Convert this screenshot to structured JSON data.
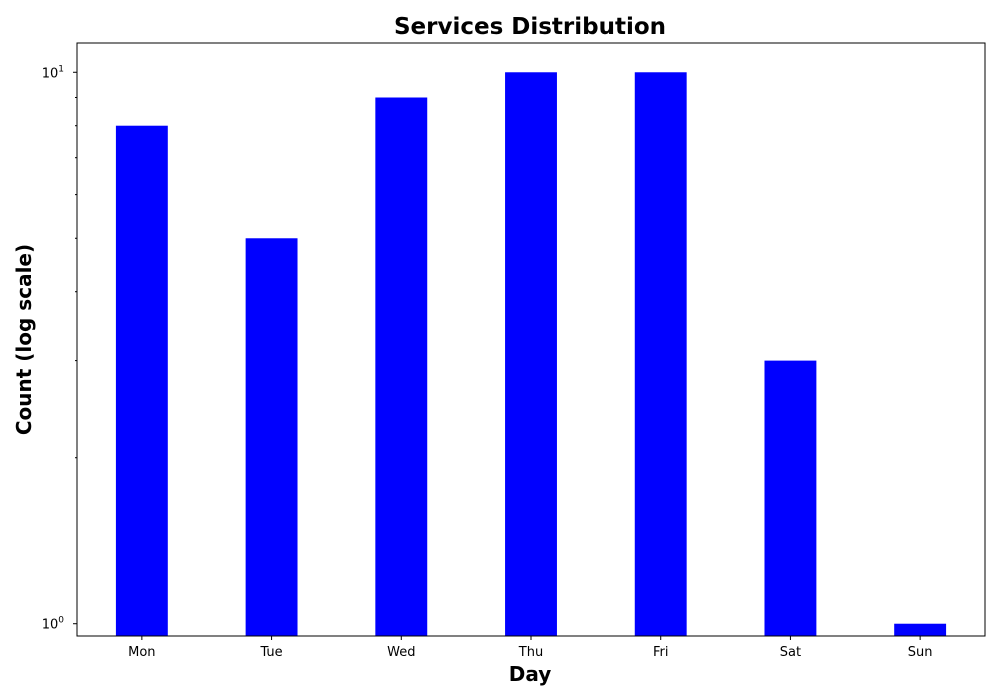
{
  "chart_data": {
    "type": "bar",
    "title": "Services Distribution",
    "xlabel": "Day",
    "ylabel": "Count (log scale)",
    "y_scale": "log",
    "ylim": [
      0.95,
      11.3
    ],
    "categories": [
      "Mon",
      "Tue",
      "Wed",
      "Thu",
      "Fri",
      "Sat",
      "Sun"
    ],
    "values": [
      8,
      5,
      9,
      10,
      10,
      3,
      1
    ],
    "y_ticks": [
      {
        "value": 1,
        "base": "10",
        "exp": "0"
      },
      {
        "value": 10,
        "base": "10",
        "exp": "1"
      }
    ],
    "bar_color": "#0000ff",
    "grid": false,
    "legend": "none"
  }
}
